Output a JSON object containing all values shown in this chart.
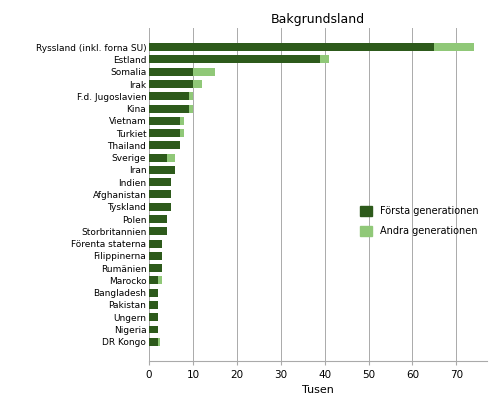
{
  "title": "Bakgrundsland",
  "xlabel": "Tusen",
  "categories": [
    "Ryssland (inkl. forna SU)",
    "Estland",
    "Somalia",
    "Irak",
    "F.d. Jugoslavien",
    "Kina",
    "Vietnam",
    "Turkiet",
    "Thailand",
    "Sverige",
    "Iran",
    "Indien",
    "Afghanistan",
    "Tyskland",
    "Polen",
    "Storbritannien",
    "Förenta staterna",
    "Filippinerna",
    "Rumänien",
    "Marocko",
    "Bangladesh",
    "Pakistan",
    "Ungern",
    "Nigeria",
    "DR Kongo"
  ],
  "forsta_generationen": [
    65,
    39,
    10,
    10,
    9,
    9,
    7,
    7,
    7,
    4,
    6,
    5,
    5,
    5,
    4,
    4,
    3,
    3,
    3,
    2,
    2,
    2,
    2,
    2,
    2
  ],
  "andra_generationen": [
    9,
    2,
    5,
    2,
    1,
    1,
    1,
    1,
    0,
    2,
    0,
    0,
    0,
    0,
    0,
    0,
    0,
    0,
    0,
    1,
    0,
    0,
    0,
    0,
    0.5
  ],
  "color_forsta": "#2d5a1b",
  "color_andra": "#90c878",
  "background_color": "#ffffff",
  "grid_color": "#aaaaaa",
  "legend_forsta": "Första generationen",
  "legend_andra": "Andra generationen",
  "xlim": [
    0,
    77
  ],
  "xticks": [
    0,
    10,
    20,
    30,
    40,
    50,
    60,
    70
  ],
  "bar_height": 0.65,
  "figsize": [
    4.97,
    4.01
  ],
  "dpi": 100
}
